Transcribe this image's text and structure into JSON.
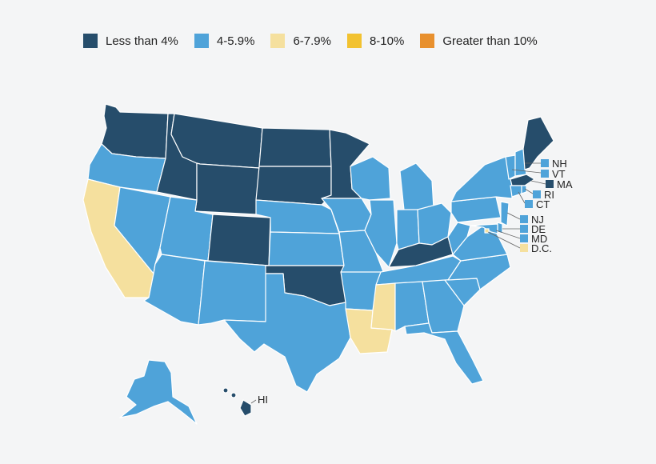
{
  "colors": {
    "lt4": "#264d6b",
    "4to6": "#4fa3d9",
    "6to8": "#f5e09e",
    "8to10": "#f2c230",
    "gt10": "#e8902e"
  },
  "legend": [
    {
      "key": "lt4",
      "label": "Less than 4%"
    },
    {
      "key": "4to6",
      "label": "4-5.9%"
    },
    {
      "key": "6to8",
      "label": "6-7.9%"
    },
    {
      "key": "8to10",
      "label": "8-10%"
    },
    {
      "key": "gt10",
      "label": "Greater than 10%"
    }
  ],
  "state_categories": {
    "WA": "lt4",
    "OR": "4to6",
    "CA": "6to8",
    "ID": "lt4",
    "NV": "4to6",
    "MT": "lt4",
    "WY": "lt4",
    "UT": "4to6",
    "AZ": "4to6",
    "CO": "lt4",
    "NM": "4to6",
    "ND": "lt4",
    "SD": "lt4",
    "NE": "4to6",
    "KS": "4to6",
    "OK": "lt4",
    "TX": "4to6",
    "MN": "lt4",
    "IA": "4to6",
    "MO": "4to6",
    "AR": "4to6",
    "LA": "6to8",
    "WI": "4to6",
    "IL": "4to6",
    "MI": "4to6",
    "IN": "4to6",
    "OH": "4to6",
    "KY": "lt4",
    "TN": "4to6",
    "MS": "6to8",
    "AL": "4to6",
    "GA": "4to6",
    "FL": "4to6",
    "SC": "4to6",
    "NC": "4to6",
    "VA": "4to6",
    "WV": "4to6",
    "PA": "4to6",
    "NY": "4to6",
    "ME": "lt4",
    "AK": "4to6",
    "HI": "lt4",
    "NH": "4to6",
    "VT": "4to6",
    "MA": "lt4",
    "RI": "4to6",
    "CT": "4to6",
    "NJ": "4to6",
    "DE": "4to6",
    "MD": "4to6",
    "DC": "6to8"
  },
  "small_state_labels": [
    {
      "code": "NH",
      "label": "NH"
    },
    {
      "code": "VT",
      "label": "VT"
    },
    {
      "code": "MA",
      "label": "MA"
    },
    {
      "code": "RI",
      "label": "RI"
    },
    {
      "code": "CT",
      "label": "CT"
    },
    {
      "code": "NJ",
      "label": "NJ"
    },
    {
      "code": "DE",
      "label": "DE"
    },
    {
      "code": "MD",
      "label": "MD"
    },
    {
      "code": "DC",
      "label": "D.C."
    },
    {
      "code": "HI",
      "label": "HI"
    }
  ]
}
